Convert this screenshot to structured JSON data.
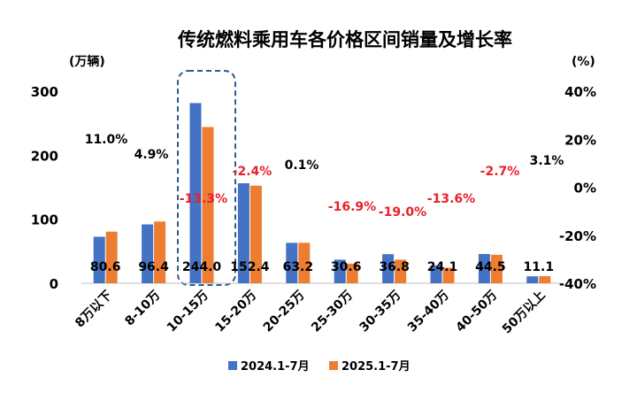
{
  "chart_data": {
    "type": "bar",
    "title": "传统燃料乘用车各价格区间销量及增长率",
    "ylabel_left": "(万辆)",
    "ylabel_right": "(%)",
    "ylim": [
      0,
      300
    ],
    "yticks": [
      "0",
      "100",
      "200",
      "300"
    ],
    "ylim_right": [
      -40,
      40
    ],
    "yticks_right": [
      "-40%",
      "-20%",
      "0%",
      "20%",
      "40%"
    ],
    "categories": [
      "8万以下",
      "8-10万",
      "10-15万",
      "15-20万",
      "20-25万",
      "25-30万",
      "30-35万",
      "35-40万",
      "40-50万",
      "50万以上"
    ],
    "series": [
      {
        "name": "2024.1-7月",
        "color": "#4472C4",
        "values": [
          72.6,
          91.9,
          281.4,
          156.2,
          63.1,
          36.8,
          45.4,
          27.9,
          45.7,
          10.8
        ]
      },
      {
        "name": "2025.1-7月",
        "color": "#ED7D31",
        "values": [
          80.6,
          96.4,
          244.0,
          152.4,
          63.2,
          30.6,
          36.8,
          24.1,
          44.5,
          11.1
        ]
      }
    ],
    "value_labels": [
      "80.6",
      "96.4",
      "244.0",
      "152.4",
      "63.2",
      "30.6",
      "36.8",
      "24.1",
      "44.5",
      "11.1"
    ],
    "growth_rate": {
      "labels": [
        "11.0%",
        "4.9%",
        "-13.3%",
        "-2.4%",
        "0.1%",
        "-16.9%",
        "-19.0%",
        "-13.6%",
        "-2.7%",
        "3.1%"
      ],
      "values": [
        11.0,
        4.9,
        -13.3,
        -2.4,
        0.1,
        -16.9,
        -19.0,
        -13.6,
        -2.7,
        3.1
      ],
      "positive_color": "#000000",
      "negative_color": "#E8212A"
    },
    "highlight": {
      "category": "10-15万",
      "color": "#2E5C8A"
    },
    "legend_position": "bottom",
    "grid": false
  }
}
